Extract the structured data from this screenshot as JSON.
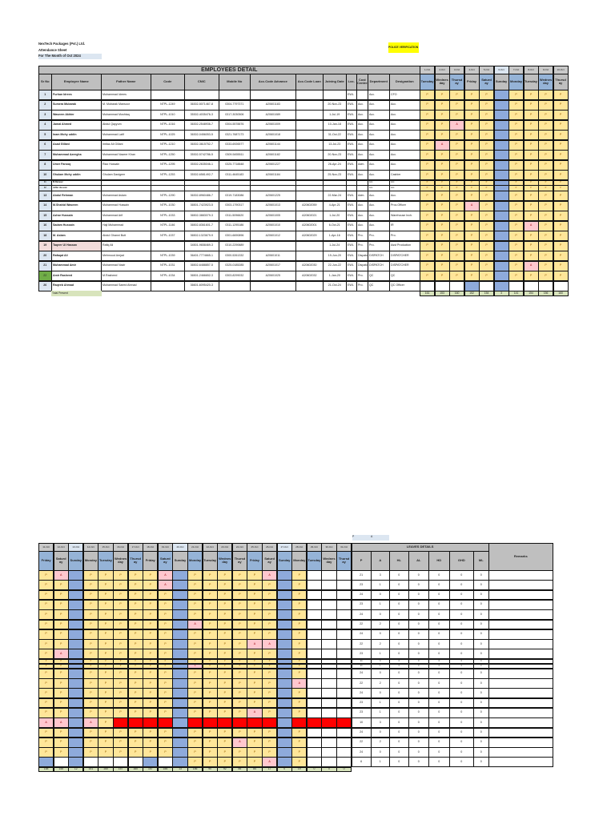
{
  "header": {
    "company": "NexTech Packages (Pvt.) Ltd.",
    "sheet_title": "Attendance Sheet",
    "month": "For The Month of Oct 2024",
    "police_verification": "POLICE VERIFICATION",
    "employees_detail": "EMPLOYEES DETAIL",
    "leaves_details": "LEAVES DETAILS",
    "remarks": "Remarks",
    "total_present": "Total Present",
    "legend_p": "P",
    "legend_a": "A"
  },
  "colors": {
    "present": "#ffe699",
    "absent": "#ffc7ce",
    "sunday": "#8eaadb",
    "missing": "#ff0000",
    "total": "#d8e4bc",
    "new_joiner": "#70ad47",
    "highlight_row": "#f2dcdb"
  },
  "columns": [
    "Sr No",
    "Employee Name",
    "Father Name",
    "Code",
    "CNIC",
    "Mobile No",
    "Acc.Code Advance",
    "Acc.Code Loan",
    "Joining Date",
    "Loc.",
    "Cost Centre",
    "Department",
    "Designation"
  ],
  "leave_columns": [
    "P",
    "A",
    "HL",
    "AL",
    "HD",
    "GHD",
    "ML"
  ],
  "days": [
    {
      "date": "1-Oct",
      "name": "Tuesday"
    },
    {
      "date": "2-Oct",
      "name": "Wednesday"
    },
    {
      "date": "3-Oct",
      "name": "Thursday"
    },
    {
      "date": "4-Oct",
      "name": "Friday"
    },
    {
      "date": "5-Oct",
      "name": "Saturday"
    },
    {
      "date": "6-Oct",
      "name": "Sunday"
    },
    {
      "date": "7-Oct",
      "name": "Monday"
    },
    {
      "date": "8-Oct",
      "name": "Tuesday"
    },
    {
      "date": "9-Oct",
      "name": "Wednesday"
    },
    {
      "date": "10-Oct",
      "name": "Thursday"
    },
    {
      "date": "11-Oct",
      "name": "Friday"
    },
    {
      "date": "12-Oct",
      "name": "Saturday"
    },
    {
      "date": "13-Oct",
      "name": "Sunday"
    },
    {
      "date": "14-Oct",
      "name": "Monday"
    },
    {
      "date": "15-Oct",
      "name": "Tuesday"
    },
    {
      "date": "16-Oct",
      "name": "Wednesday"
    },
    {
      "date": "17-Oct",
      "name": "Thursday"
    },
    {
      "date": "18-Oct",
      "name": "Friday"
    },
    {
      "date": "19-Oct",
      "name": "Saturday"
    },
    {
      "date": "20-Oct",
      "name": "Sunday"
    },
    {
      "date": "21-Oct",
      "name": "Monday"
    },
    {
      "date": "22-Oct",
      "name": "Tuesday"
    },
    {
      "date": "23-Oct",
      "name": "Wednesday"
    },
    {
      "date": "24-Oct",
      "name": "Thursday"
    },
    {
      "date": "25-Oct",
      "name": "Friday"
    },
    {
      "date": "26-Oct",
      "name": "Saturday"
    },
    {
      "date": "27-Oct",
      "name": "Sunday"
    },
    {
      "date": "28-Oct",
      "name": "Monday"
    },
    {
      "date": "29-Oct",
      "name": "Tuesday"
    },
    {
      "date": "30-Oct",
      "name": "Wednesday"
    },
    {
      "date": "31-Oct",
      "name": "Thursday"
    }
  ],
  "attendance_legend": {
    "P": "present",
    "A": "absent",
    "S": "sunday",
    "B": "blank-blue",
    "W": "blank",
    "R": "missing-red"
  },
  "employees": [
    {
      "sr": "1",
      "name": "Furhan Idrees",
      "father": "Muhammad Idrees",
      "code": "",
      "cnic": "",
      "mobile": "",
      "adv": "",
      "loan": "",
      "join": "",
      "loc": "EWL",
      "cost": "",
      "dept": "Acc.",
      "desig": "CFO",
      "att": "PPPPPSPPPPPASPPPPPASPPPPPASPWWW",
      "leave": [
        21,
        3,
        0,
        0,
        0,
        0,
        0
      ]
    },
    {
      "sr": "2",
      "name": "Sumera Mubarak",
      "father": "M. Mubarak Mansoor",
      "code": "NTPL-1249",
      "cnic": "36302-5071467-8",
      "mobile": "0304-7797371",
      "adv": "A20601183",
      "loan": "",
      "join": "20-Nov-23",
      "loc": "EWL",
      "cost": "Acc.",
      "dept": "Acc.",
      "desig": "Acc.",
      "att": "PPPPPSPPPPPPSPPPPPASPPPPPPSPWWW",
      "leave": [
        23,
        1,
        0,
        0,
        0,
        0,
        0
      ]
    },
    {
      "sr": "3",
      "name": "Waseem Akhter",
      "father": "Muhammad Mushtaq",
      "code": "NTPL-1010",
      "cnic": "35302-4035476-3",
      "mobile": "0317-3030506",
      "adv": "A20601089",
      "loan": "",
      "join": "1-Jul-19",
      "loc": "EWL",
      "cost": "Acc.",
      "dept": "Acc.",
      "desig": "Acc.",
      "att": "PPPPPSPPPPPPSPPPPPPSPPPPPPSPWWW",
      "leave": [
        24,
        0,
        0,
        0,
        0,
        0,
        0
      ]
    },
    {
      "sr": "4",
      "name": "Jamal Ahmed",
      "father": "Abdul Qayyum",
      "code": "NTPL-1016",
      "cnic": "36302-2548936-7",
      "mobile": "0304-5578876",
      "adv": "A20601009",
      "loan": "",
      "join": "10-Jan-18",
      "loc": "EWL",
      "cost": "Acc.",
      "dept": "Acc.",
      "desig": "Acc.",
      "att": "PPAPPSPPPPPPSPPPPPPSPPPPPPSPWWW",
      "leave": [
        23,
        1,
        0,
        0,
        0,
        0,
        0
      ]
    },
    {
      "sr": "5",
      "name": "Inam Mohy uddin",
      "father": "Muhammad Latif",
      "code": "NTPL-1025",
      "cnic": "36302-0456053-5",
      "mobile": "0321-7687173",
      "adv": "A20601018",
      "loan": "",
      "join": "31-Oct-22",
      "loc": "EWL",
      "cost": "Acc.",
      "dept": "Acc.",
      "desig": "Acc.",
      "att": "PPPPPSPPPPPPSPPPPPPSPPPPPPSPWWW",
      "leave": [
        24,
        0,
        0,
        0,
        0,
        0,
        0
      ]
    },
    {
      "sr": "6",
      "name": "Asad Gillani",
      "father": "Imtiaz Ali Gillani",
      "code": "NTPL-1210",
      "cnic": "36302-3615752-7",
      "mobile": "0333-6926577",
      "adv": "A20601144",
      "loan": "",
      "join": "13-Jul-23",
      "loc": "EWL",
      "cost": "Acc.",
      "dept": "Acc.",
      "desig": "Acc.",
      "att": "PAPPPSPPPPPPSPPPPPPSAPPPPPSPWWW",
      "leave": [
        22,
        2,
        0,
        0,
        0,
        0,
        0
      ]
    },
    {
      "sr": "7",
      "name": "Muhammad Azeegha",
      "father": "Muhammad Nazeer Khan",
      "code": "NTPL-1250",
      "cnic": "35302-5742786-5",
      "mobile": "0309-5455511",
      "adv": "A20601182",
      "loan": "",
      "join": "20-Nov-23",
      "loc": "EWL",
      "cost": "Acc.",
      "dept": "Acc.",
      "desig": "Acc.",
      "att": "PPPPPSPPPPPPSPPPPPPSPPPPPPSPWWW",
      "leave": [
        24,
        0,
        0,
        0,
        0,
        0,
        0
      ]
    },
    {
      "sr": "8",
      "name": "Umer Farooq",
      "father": "Riaz Hussain",
      "code": "NTPL-1295",
      "cnic": "35302-2635046-1",
      "mobile": "0325-7718848",
      "adv": "A20601227",
      "loan": "",
      "join": "26-Apr-24",
      "loc": "EWL",
      "cost": "Adm.",
      "dept": "Acc.",
      "desig": "Acc.",
      "att": "PPPPPSPPPPPPSPPPPPPSPPPPAASPWWW",
      "leave": [
        22,
        2,
        0,
        0,
        0,
        0,
        0
      ]
    },
    {
      "sr": "10",
      "name": "Ghulam Mohy uddin",
      "father": "Ghulam Dastgeer",
      "code": "NTPL-1253",
      "cnic": "35302-6581492-7",
      "mobile": "0311-4645183",
      "adv": "A20601184",
      "loan": "",
      "join": "25-Nov-23",
      "loc": "EWL",
      "cost": "Acc.",
      "dept": "Acc.",
      "desig": "Cashier",
      "att": "PPPPPSPPPPPASPPPPPPSPPPPPPSPWWW",
      "leave": [
        23,
        1,
        0,
        0,
        0,
        0,
        0
      ]
    },
    {
      "sr": "11",
      "name": "M.Rameez",
      "father": "",
      "code": "",
      "cnic": "",
      "mobile": "",
      "adv": "",
      "loan": "",
      "join": "",
      "loc": "",
      "cost": "",
      "dept": "Acc.",
      "desig": "Acc.",
      "att": "PPPPPSPPPPPPSPPPPPPSPPPPPPSPWWW",
      "leave": [
        24,
        0,
        0,
        0,
        0,
        0,
        0
      ],
      "thin": true
    },
    {
      "sr": "12",
      "name": "Jaffar Hussain",
      "father": "",
      "code": "",
      "cnic": "",
      "mobile": "",
      "adv": "",
      "loan": "",
      "join": "",
      "loc": "",
      "cost": "",
      "dept": "Acc.",
      "desig": "Acc.",
      "att": "PPPPPSPPPPPPSPPPPPPSAPPPPPSPWWW",
      "leave": [
        23,
        1,
        0,
        0,
        0,
        0,
        0
      ],
      "thin": true
    },
    {
      "sr": "13",
      "name": "Abdul Rehman",
      "father": "Muhammad Aslam",
      "code": "NTPL-1290",
      "cnic": "36302-8960486-7",
      "mobile": "0319-7183086",
      "adv": "A20601225",
      "loan": "",
      "join": "22-Mar-24",
      "loc": "EWL",
      "cost": "Adm.",
      "dept": "Acc.",
      "desig": "Acc.",
      "att": "PPPPPSPPPPPPSPPPPPPSPPPPPPSPWWW",
      "leave": [
        24,
        0,
        0,
        0,
        0,
        0,
        0
      ]
    },
    {
      "sr": "14",
      "name": "M.Shahid Waseem",
      "father": "Muhammad Hussain",
      "code": "NTPL-1030",
      "cnic": "36501-7423923-5",
      "mobile": "0303-1790317",
      "adv": "A20601013",
      "loan": "A20602059",
      "join": "4-Apr-21",
      "loc": "EWL",
      "cost": "Acc.",
      "dept": "Acc.",
      "desig": "Proc.Officer",
      "att": "PPPAPSPPPPPPSPPPPPPSPPPPPPSAWWW",
      "leave": [
        22,
        2,
        0,
        0,
        0,
        0,
        0
      ]
    },
    {
      "sr": "15",
      "name": "Azhar Hussain",
      "father": "Muhammad Arif",
      "code": "NTPL-1033",
      "cnic": "36502-3883079-3",
      "mobile": "0311-5096620",
      "adv": "A20601005",
      "loan": "A20602021",
      "join": "1-Jul-20",
      "loc": "EWL",
      "cost": "Acc.",
      "dept": "Acc.",
      "desig": "Warehouse Inch.",
      "att": "PPPPPSPPPPPPSPPPPPPSPPPPPPSPWWW",
      "leave": [
        24,
        0,
        0,
        0,
        0,
        0,
        0
      ]
    },
    {
      "sr": "16",
      "name": "Sadam Hussain",
      "father": "Haji Muhammad",
      "code": "NTPL-1146",
      "cnic": "36502-8361601-7",
      "mobile": "0311-1295186",
      "adv": "A20601010",
      "loan": "A20602001",
      "join": "6-Oct-21",
      "loc": "EWL",
      "cost": "Acc.",
      "dept": "Acc.",
      "desig": "IR",
      "att": "PPPPPSPAPPPPSPPPPPPSPPPPPPSPWWW",
      "leave": [
        23,
        1,
        0,
        0,
        0,
        0,
        0
      ]
    },
    {
      "sr": "18",
      "name": "M. Aslam",
      "father": "Abdul Ghanni Butt",
      "code": "NTPL-1037",
      "cnic": "36502-1323679-9",
      "mobile": "0301-6690896",
      "adv": "A20601012",
      "loan": "A20602029",
      "join": "1-Apr-16",
      "loc": "EWL",
      "cost": "Pro.",
      "dept": "Pro.",
      "desig": "Pro.",
      "att": "PPPPPSPPPPPPSPPPPPPSPPPPAPSPWWW",
      "leave": [
        23,
        1,
        0,
        0,
        0,
        0,
        0
      ]
    },
    {
      "sr": "19",
      "name": "Taqeer Ul Hassan",
      "father": "Rafiq Ali",
      "code": "",
      "cnic": "34501-9658469-3",
      "mobile": "0310-2290689",
      "adv": "",
      "loan": "",
      "join": "1-Jul-24",
      "loc": "EWL",
      "cost": "Pro.",
      "dept": "Pro.",
      "desig": "Asst Production",
      "att": "PPPPPSPPPPAASAPRRRRSRRRRRRSRRRR",
      "leave": [
        10,
        3,
        0,
        0,
        0,
        0,
        0
      ],
      "pink": true
    },
    {
      "sr": "20",
      "name": "Rafaqat Ali",
      "father": "Mehmood Amjad",
      "code": "NTPL-1039",
      "cnic": "36401-7774665-1",
      "mobile": "0300-5261332",
      "adv": "A20601011",
      "loan": "",
      "join": "19-Jun-20",
      "loc": "EWL",
      "cost": "Dispatch",
      "dept": "DISPATCH",
      "desig": "DISPATCHER",
      "att": "PPPPPSPPPPPPSPPPPPPSPPPPPPSPWWW",
      "leave": [
        24,
        0,
        0,
        0,
        0,
        0,
        0
      ]
    },
    {
      "sr": "21",
      "name": "Muhammad Amir",
      "father": "Muhammad Nazir",
      "code": "NTPL-1031",
      "cnic": "36502-6488857-5",
      "mobile": "0325-0185285",
      "adv": "A20601017",
      "loan": "A20602030",
      "join": "22-Jun-22",
      "loc": "EWL",
      "cost": "Dispatch",
      "dept": "DISPATCH",
      "desig": "DISPATCHER",
      "att": "PPPPPSPAPPPPSPPPPPPSPPPAPPSPWWW",
      "leave": [
        22,
        2,
        0,
        0,
        0,
        0,
        0
      ]
    },
    {
      "sr": "22",
      "name": "Amir Rasheed",
      "father": "M.Rasheed",
      "code": "NTPL-1034",
      "cnic": "36501-2466652-3",
      "mobile": "0303-8299032",
      "adv": "A20601025",
      "loan": "A20602032",
      "join": "1-Jan-20",
      "loc": "EWL",
      "cost": "Pro.",
      "dept": "QC",
      "desig": "QC",
      "att": "PPPPPSPPPPPPSPPPPPPSPPPPPPSPWWW",
      "leave": [
        24,
        0,
        0,
        0,
        0,
        0,
        0
      ],
      "green": true
    },
    {
      "sr": "26",
      "name": "Raqeeb Ahmad",
      "father": "Muhammad Saeed Ahmad",
      "code": "",
      "cnic": "36601-6095420-3",
      "mobile": "",
      "adv": "",
      "loan": "",
      "join": "21-Oct-24",
      "loc": "EWL",
      "cost": "Pro.",
      "dept": "QC",
      "desig": "QC Officer",
      "att": "WWWBWSWWWWBWSWWWWBWSPPPPPASPWWW",
      "leave": [
        6,
        1,
        0,
        0,
        0,
        0,
        0
      ]
    }
  ],
  "day_totals": [
    161,
    153,
    160,
    152,
    154,
    3,
    141,
    154,
    156,
    160,
    158,
    145,
    12,
    151,
    150,
    157,
    160,
    157,
    156,
    13,
    156,
    90,
    92,
    85,
    84,
    17,
    0,
    19,
    0,
    0,
    0
  ]
}
